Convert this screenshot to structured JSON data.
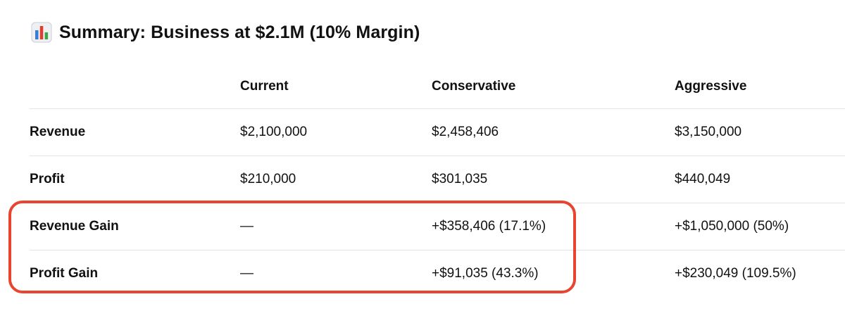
{
  "title": {
    "icon": "bar-chart-icon",
    "text": "Summary: Business at $2.1M (10% Margin)"
  },
  "table": {
    "columns": [
      "",
      "Current",
      "Conservative",
      "Aggressive"
    ],
    "rows": [
      {
        "label": "Revenue",
        "current": "$2,100,000",
        "conservative": "$2,458,406",
        "aggressive": "$3,150,000"
      },
      {
        "label": "Profit",
        "current": "$210,000",
        "conservative": "$301,035",
        "aggressive": "$440,049"
      },
      {
        "label": "Revenue Gain",
        "current": "—",
        "conservative": "+$358,406 (17.1%)",
        "aggressive": "+$1,050,000 (50%)"
      },
      {
        "label": "Profit Gain",
        "current": "—",
        "conservative": "+$91,035 (43.3%)",
        "aggressive": "+$230,049 (109.5%)"
      }
    ]
  },
  "colors": {
    "highlight": "#e8442f",
    "icon_bar_1": "#3a7bd5",
    "icon_bar_2": "#e23c2d",
    "icon_bar_3": "#3aa64a"
  }
}
